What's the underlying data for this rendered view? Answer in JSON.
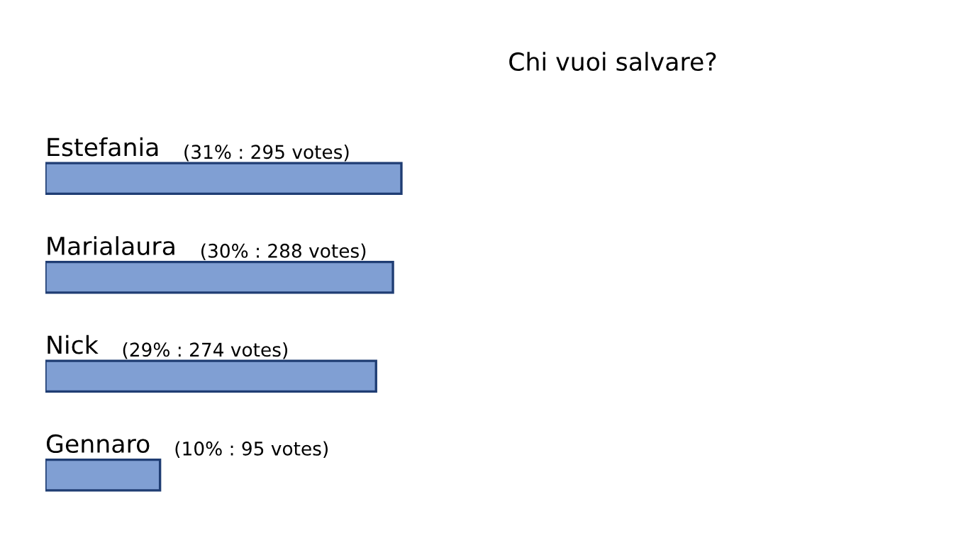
{
  "chart_data": {
    "type": "bar",
    "orientation": "horizontal",
    "title": "Chi vuoi salvare?",
    "categories": [
      "Estefania",
      "Marialaura",
      "Nick",
      "Gennaro"
    ],
    "values": [
      295,
      288,
      274,
      95
    ],
    "value_labels": [
      "(31% : 295 votes)",
      "(30% : 288 votes)",
      "(29% : 274 votes)",
      "(10% : 95 votes)"
    ],
    "color": "#809fd3",
    "legend": false
  }
}
